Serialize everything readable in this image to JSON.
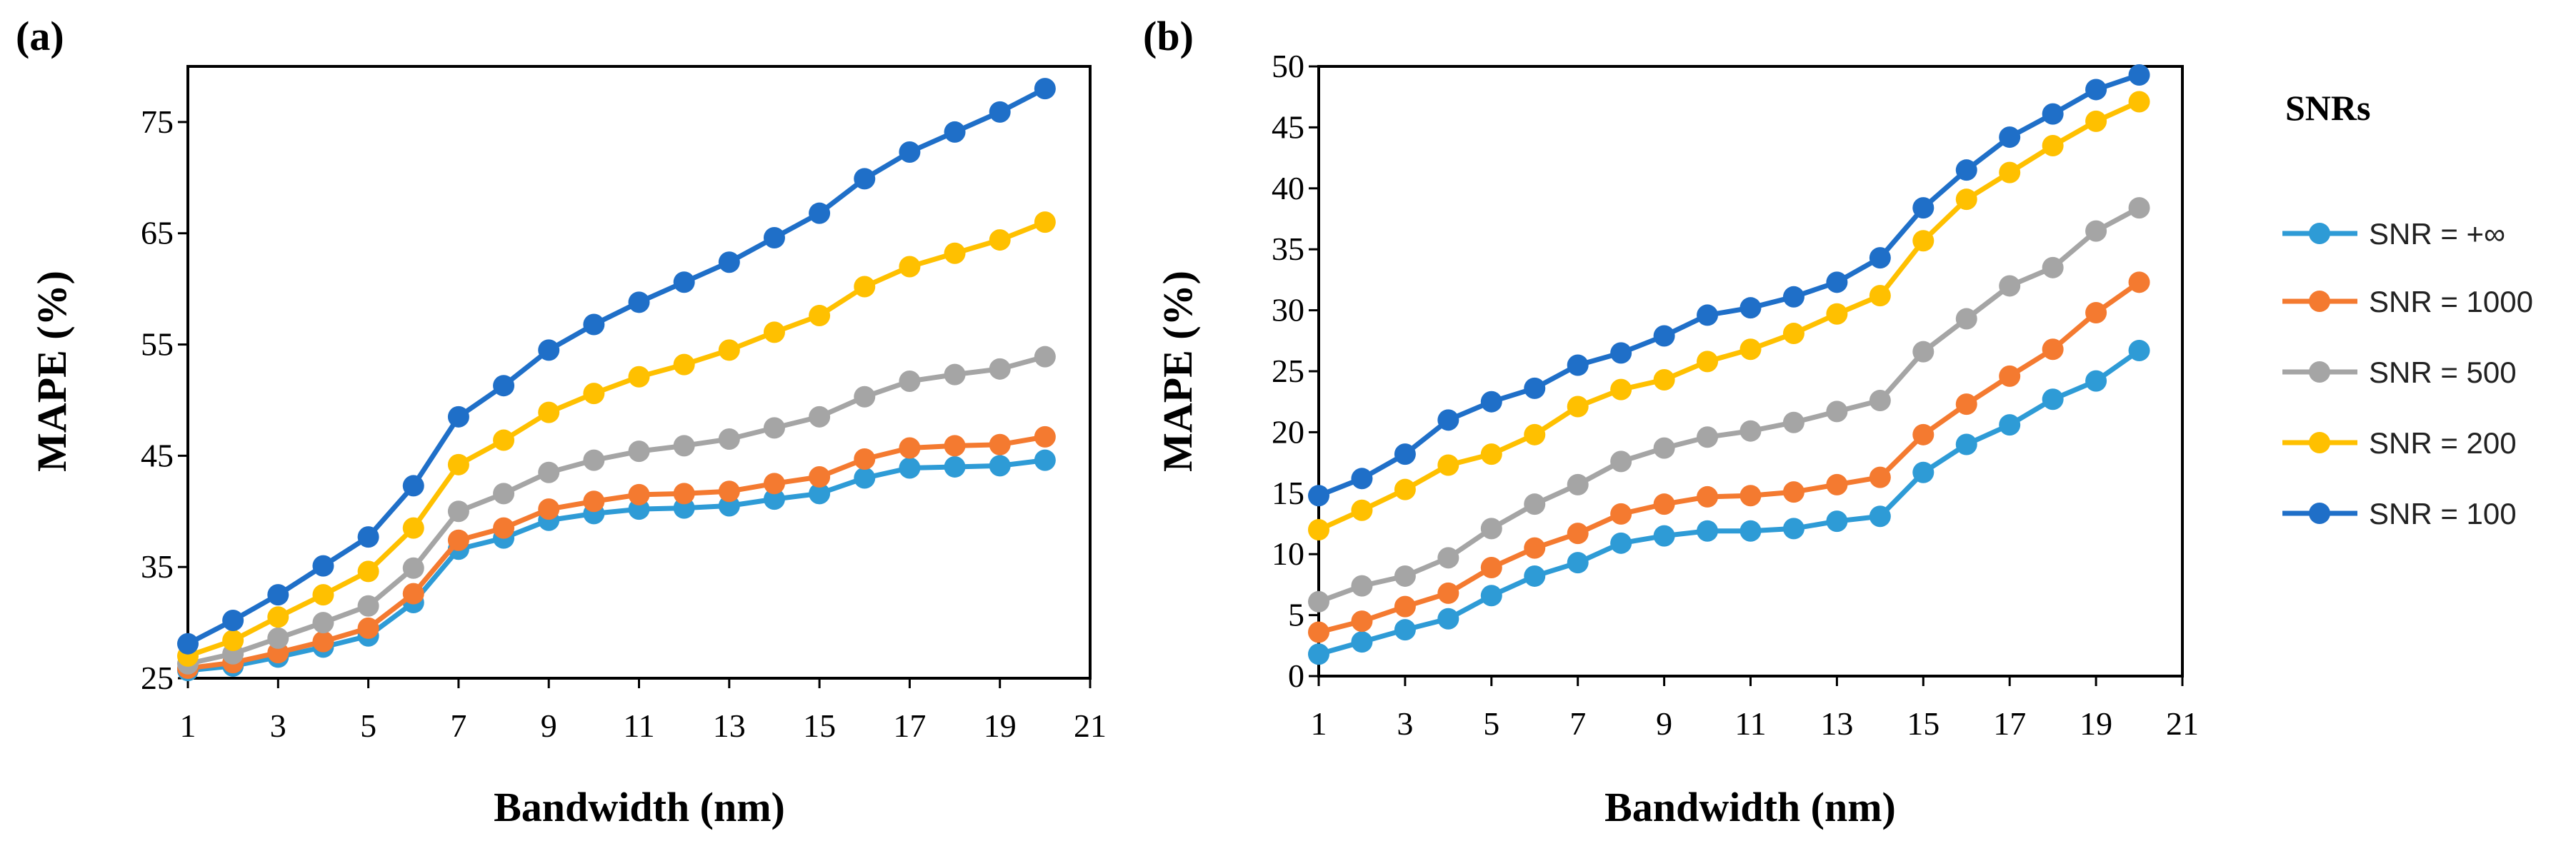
{
  "colors": {
    "snr_inf": "#2E9BD6",
    "snr_1000": "#F47A30",
    "snr_500": "#A5A5A5",
    "snr_200": "#FFC000",
    "snr_100": "#1F6FC8"
  },
  "legend": {
    "title": "SNRs",
    "items": [
      "SNR = +∞",
      "SNR = 1000",
      "SNR = 500",
      "SNR = 200",
      "SNR = 100"
    ]
  },
  "chart_data": [
    {
      "type": "line",
      "panel_label": "(a)",
      "title": "",
      "xlabel": "Bandwidth (nm)",
      "ylabel": "MAPE (%)",
      "xlim": [
        1,
        21
      ],
      "xticks": [
        1,
        3,
        5,
        7,
        9,
        11,
        13,
        15,
        17,
        19,
        21
      ],
      "ylim": [
        25,
        80
      ],
      "yticks": [
        25,
        35,
        45,
        55,
        65,
        75
      ],
      "grid": false,
      "x": [
        1,
        2,
        3,
        4,
        5,
        6,
        7,
        8,
        9,
        10,
        11,
        12,
        13,
        14,
        15,
        16,
        17,
        18,
        19,
        20
      ],
      "series": [
        {
          "name": "SNR = +∞",
          "color_key": "snr_inf",
          "values": [
            25.7,
            26.1,
            26.9,
            27.8,
            28.8,
            31.8,
            36.6,
            37.6,
            39.2,
            39.8,
            40.2,
            40.3,
            40.5,
            41.1,
            41.6,
            43.0,
            43.9,
            44.0,
            44.1,
            44.6
          ]
        },
        {
          "name": "SNR = 1000",
          "color_key": "snr_1000",
          "values": [
            25.9,
            26.4,
            27.3,
            28.3,
            29.5,
            32.6,
            37.4,
            38.5,
            40.2,
            40.9,
            41.5,
            41.6,
            41.8,
            42.5,
            43.1,
            44.7,
            45.7,
            45.9,
            46.0,
            46.7
          ]
        },
        {
          "name": "SNR = 500",
          "color_key": "snr_500",
          "values": [
            26.3,
            27.2,
            28.6,
            30.0,
            31.5,
            34.9,
            40.0,
            41.6,
            43.5,
            44.6,
            45.4,
            45.9,
            46.5,
            47.5,
            48.5,
            50.3,
            51.7,
            52.3,
            52.8,
            53.9
          ]
        },
        {
          "name": "SNR = 200",
          "color_key": "snr_200",
          "values": [
            27.0,
            28.4,
            30.5,
            32.5,
            34.6,
            38.5,
            44.2,
            46.4,
            48.9,
            50.6,
            52.1,
            53.2,
            54.5,
            56.1,
            57.6,
            60.2,
            62.0,
            63.2,
            64.4,
            66.0
          ]
        },
        {
          "name": "SNR = 100",
          "color_key": "snr_100",
          "values": [
            28.1,
            30.2,
            32.5,
            35.1,
            37.7,
            42.3,
            48.5,
            51.3,
            54.5,
            56.8,
            58.8,
            60.6,
            62.4,
            64.6,
            66.8,
            69.9,
            72.3,
            74.1,
            75.9,
            78.0
          ]
        }
      ]
    },
    {
      "type": "line",
      "panel_label": "(b)",
      "title": "",
      "xlabel": "Bandwidth (nm)",
      "ylabel": "MAPE (%)",
      "xlim": [
        1,
        21
      ],
      "xticks": [
        1,
        3,
        5,
        7,
        9,
        11,
        13,
        15,
        17,
        19,
        21
      ],
      "ylim": [
        0,
        50
      ],
      "yticks": [
        0,
        5,
        10,
        15,
        20,
        25,
        30,
        35,
        40,
        45,
        50
      ],
      "grid": false,
      "legend_position": "right",
      "x": [
        1,
        2,
        3,
        4,
        5,
        6,
        7,
        8,
        9,
        10,
        11,
        12,
        13,
        14,
        15,
        16,
        17,
        18,
        19,
        20
      ],
      "series": [
        {
          "name": "SNR = +∞",
          "color_key": "snr_inf",
          "values": [
            1.8,
            2.8,
            3.8,
            4.7,
            6.6,
            8.2,
            9.3,
            10.9,
            11.5,
            11.9,
            11.9,
            12.1,
            12.7,
            13.1,
            16.7,
            19.0,
            20.6,
            22.7,
            24.2,
            26.7
          ]
        },
        {
          "name": "SNR = 1000",
          "color_key": "snr_1000",
          "values": [
            3.6,
            4.5,
            5.7,
            6.8,
            8.9,
            10.5,
            11.7,
            13.3,
            14.1,
            14.7,
            14.8,
            15.1,
            15.7,
            16.3,
            19.8,
            22.3,
            24.6,
            26.8,
            29.8,
            32.3
          ]
        },
        {
          "name": "SNR = 500",
          "color_key": "snr_500",
          "values": [
            6.1,
            7.4,
            8.2,
            9.7,
            12.1,
            14.1,
            15.7,
            17.6,
            18.7,
            19.6,
            20.1,
            20.8,
            21.7,
            22.6,
            26.6,
            29.3,
            32.0,
            33.5,
            36.5,
            38.4
          ]
        },
        {
          "name": "SNR = 200",
          "color_key": "snr_200",
          "values": [
            12.0,
            13.6,
            15.3,
            17.3,
            18.2,
            19.8,
            22.1,
            23.5,
            24.3,
            25.8,
            26.8,
            28.1,
            29.7,
            31.2,
            35.7,
            39.1,
            41.3,
            43.5,
            45.5,
            47.1
          ]
        },
        {
          "name": "SNR = 100",
          "color_key": "snr_100",
          "values": [
            14.8,
            16.2,
            18.2,
            21.0,
            22.5,
            23.6,
            25.5,
            26.5,
            27.9,
            29.6,
            30.2,
            31.1,
            32.3,
            34.3,
            38.4,
            41.5,
            44.2,
            46.1,
            48.1,
            49.3
          ]
        }
      ]
    }
  ]
}
